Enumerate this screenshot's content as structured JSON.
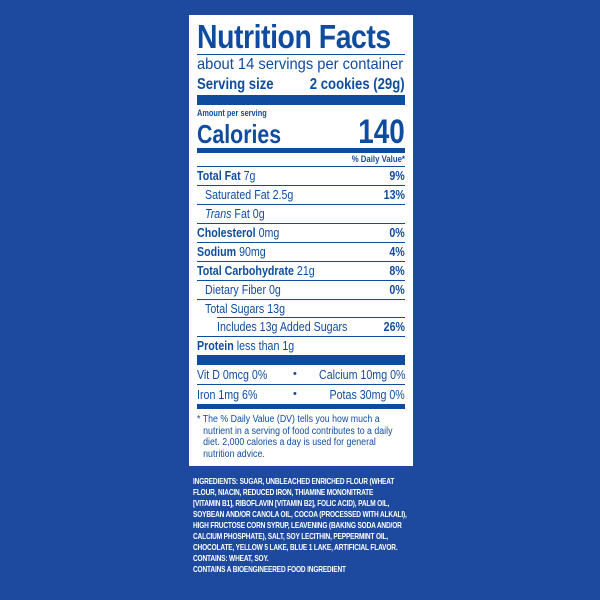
{
  "colors": {
    "background": "#1d4a9e",
    "label_ink": "#0f4c9f",
    "label_bg": "#ffffff"
  },
  "header": {
    "title": "Nutrition Facts",
    "servings": "about 14 servings per container",
    "serving_size_label": "Serving size",
    "serving_size_value": "2 cookies (29g)"
  },
  "calories": {
    "amount_label": "Amount per serving",
    "label": "Calories",
    "value": "140"
  },
  "dv_header": "% Daily Value*",
  "nutrients": [
    {
      "name": "Total Fat",
      "amount": "7g",
      "dv": "9%",
      "bold": true,
      "indent": 0
    },
    {
      "name": "Saturated Fat",
      "amount": "2.5g",
      "dv": "13%",
      "bold": false,
      "indent": 1
    },
    {
      "name": "Trans",
      "amount": "Fat 0g",
      "dv": "",
      "bold": false,
      "indent": 1,
      "italic": true
    },
    {
      "name": "Cholesterol",
      "amount": "0mg",
      "dv": "0%",
      "bold": true,
      "indent": 0
    },
    {
      "name": "Sodium",
      "amount": "90mg",
      "dv": "4%",
      "bold": true,
      "indent": 0
    },
    {
      "name": "Total Carbohydrate",
      "amount": "21g",
      "dv": "8%",
      "bold": true,
      "indent": 0
    },
    {
      "name": "Dietary Fiber",
      "amount": "0g",
      "dv": "0%",
      "bold": false,
      "indent": 1
    },
    {
      "name": "Total Sugars",
      "amount": "13g",
      "dv": "",
      "bold": false,
      "indent": 1
    },
    {
      "name": "Includes 13g Added Sugars",
      "amount": "",
      "dv": "26%",
      "bold": false,
      "indent": 2
    },
    {
      "name": "Protein",
      "amount": "less than 1g",
      "dv": "",
      "bold": true,
      "indent": 0
    }
  ],
  "vitamins": [
    {
      "left": "Vit D 0mcg 0%",
      "right": "Calcium 10mg 0%"
    },
    {
      "left": "Iron 1mg 6%",
      "right": "Potas 30mg 0%"
    }
  ],
  "bullet": "•",
  "footnote": "* The % Daily Value (DV) tells you how much a nutrient in a serving of food contributes to a daily diet. 2,000 calories a day is used for general nutrition advice.",
  "ingredients": {
    "lines": [
      "INGREDIENTS: SUGAR, UNBLEACHED ENRICHED FLOUR (WHEAT",
      "FLOUR, NIACIN, REDUCED IRON, THIAMINE MONONITRATE",
      "[VITAMIN B1], RIBOFLAVIN [VITAMIN B2], FOLIC ACID), PALM OIL,",
      "SOYBEAN AND/OR CANOLA OIL, COCOA (PROCESSED WITH ALKALI),",
      "HIGH FRUCTOSE CORN SYRUP, LEAVENING (BAKING SODA AND/OR",
      "CALCIUM PHOSPHATE), SALT, SOY LECITHIN, PEPPERMINT OIL,",
      "CHOCOLATE, YELLOW 5 LAKE, BLUE 1 LAKE, ARTIFICIAL FLAVOR."
    ],
    "contains": "CONTAINS: WHEAT, SOY.",
    "bioengineered": "CONTAINS A BIOENGINEERED FOOD INGREDIENT"
  }
}
